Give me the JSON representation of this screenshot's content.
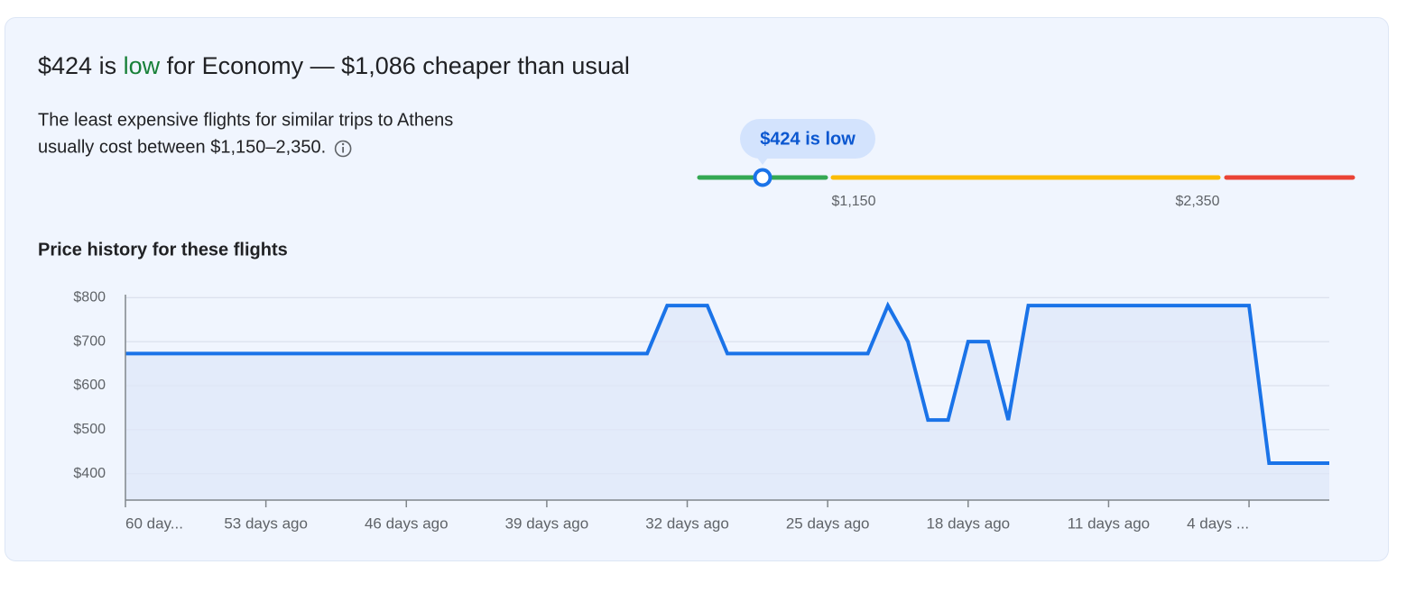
{
  "header": {
    "title_parts": [
      "$424 is ",
      "low",
      " for Economy — $1,086 cheaper than usual"
    ],
    "description_lines": [
      "The least expensive flights for similar trips to Athens",
      "usually cost between $1,150–2,350."
    ]
  },
  "price_range": {
    "bubble": "$424 is low",
    "low_label": "$1,150",
    "high_label": "$2,350"
  },
  "chart_data": {
    "type": "line",
    "title": "Price history for these flights",
    "x": [
      60,
      34,
      33,
      31,
      30,
      23,
      22,
      21,
      20,
      19,
      18,
      17,
      16,
      15,
      4,
      3,
      0
    ],
    "series": [
      {
        "name": "Price",
        "color": "#1a73e8",
        "values": [
          673,
          673,
          782,
          782,
          673,
          673,
          782,
          700,
          522,
          522,
          700,
          700,
          522,
          782,
          782,
          424,
          424
        ]
      }
    ],
    "xlim": [
      60,
      0
    ],
    "xticks": [
      {
        "value": 60,
        "label": "60 day..."
      },
      {
        "value": 53,
        "label": "53 days ago"
      },
      {
        "value": 46,
        "label": "46 days ago"
      },
      {
        "value": 39,
        "label": "39 days ago"
      },
      {
        "value": 32,
        "label": "32 days ago"
      },
      {
        "value": 25,
        "label": "25 days ago"
      },
      {
        "value": 18,
        "label": "18 days ago"
      },
      {
        "value": 11,
        "label": "11 days ago"
      },
      {
        "value": 4,
        "label": "4 days ..."
      }
    ],
    "ylim": [
      340,
      817
    ],
    "yticks": [
      {
        "value": 400,
        "label": "$400"
      },
      {
        "value": 500,
        "label": "$500"
      },
      {
        "value": 600,
        "label": "$600"
      },
      {
        "value": 700,
        "label": "$700"
      },
      {
        "value": 800,
        "label": "$800"
      }
    ],
    "grid": true,
    "fill_color": "#dfe7f8"
  }
}
